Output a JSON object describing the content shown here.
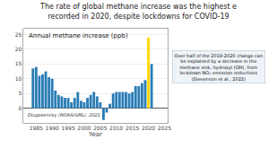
{
  "chart_data": {
    "type": "bar",
    "title": "The rate of global methane increase was the highest e\nrecorded in 2020, despite lockdowns for COVID-19",
    "subtitle": "Annual methane increase (ppb)",
    "xlabel": "Year",
    "annotations": [
      "Dlugokencky (NOAA/GML), 2021",
      "Over half of the 2019-2020 change can\nbe explained by a decrease in the\nmethane sink, hydroxyl (OH), from\nlockdown NOₓ emission reductions\n(Stevenson et al., 2022)"
    ],
    "x": [
      1984,
      1985,
      1986,
      1987,
      1988,
      1989,
      1990,
      1991,
      1992,
      1993,
      1994,
      1995,
      1996,
      1997,
      1998,
      1999,
      2000,
      2001,
      2002,
      2003,
      2004,
      2005,
      2006,
      2007,
      2008,
      2009,
      2010,
      2011,
      2012,
      2013,
      2014,
      2015,
      2016,
      2017,
      2018,
      2019,
      2020,
      2021
    ],
    "values": [
      13.5,
      14.0,
      11.0,
      11.5,
      12.5,
      10.5,
      10.0,
      6.0,
      4.5,
      4.0,
      3.5,
      3.5,
      2.0,
      3.5,
      5.5,
      2.5,
      2.0,
      3.5,
      4.5,
      5.5,
      4.0,
      2.0,
      -4.0,
      -1.5,
      1.5,
      5.0,
      5.5,
      5.5,
      5.5,
      5.5,
      5.0,
      5.5,
      7.5,
      7.5,
      8.5,
      9.5,
      24.0,
      15.0
    ],
    "colors": [
      "#2a7db5",
      "#2a7db5",
      "#2a7db5",
      "#2a7db5",
      "#2a7db5",
      "#2a7db5",
      "#2a7db5",
      "#2a7db5",
      "#2a7db5",
      "#2a7db5",
      "#2a7db5",
      "#2a7db5",
      "#2a7db5",
      "#2a7db5",
      "#2a7db5",
      "#2a7db5",
      "#2a7db5",
      "#2a7db5",
      "#2a7db5",
      "#2a7db5",
      "#2a7db5",
      "#2a7db5",
      "#2a7db5",
      "#2a7db5",
      "#2a7db5",
      "#2a7db5",
      "#2a7db5",
      "#2a7db5",
      "#2a7db5",
      "#2a7db5",
      "#2a7db5",
      "#2a7db5",
      "#2a7db5",
      "#2a7db5",
      "#2a7db5",
      "#2a7db5",
      "#ffd700",
      "#2a7db5"
    ],
    "xlim": [
      1981,
      2026
    ],
    "xticks": [
      1985,
      1990,
      1995,
      2000,
      2005,
      2010,
      2015,
      2020,
      2025
    ],
    "ylim": [
      -5,
      27
    ],
    "yticks": [
      0,
      5,
      10,
      15,
      20,
      25
    ],
    "grid": true
  }
}
